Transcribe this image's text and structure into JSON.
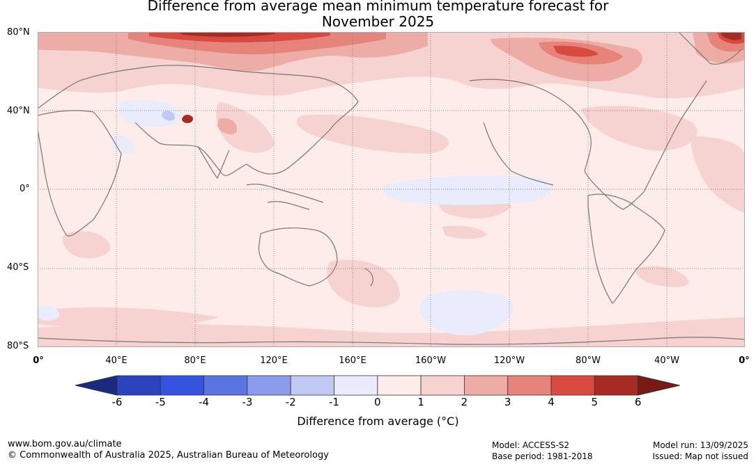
{
  "title_line1": "Difference from average mean minimum temperature forecast for",
  "title_line2": "November 2025",
  "lat_labels": [
    "80°N",
    "40°N",
    "0°",
    "40°S",
    "80°S"
  ],
  "lon_labels": [
    "0°",
    "40°E",
    "80°E",
    "120°E",
    "160°E",
    "160°W",
    "120°W",
    "80°W",
    "40°W",
    "0°"
  ],
  "colorbar": {
    "ticks": [
      "-6",
      "-5",
      "-4",
      "-3",
      "-2",
      "-1",
      "0",
      "1",
      "2",
      "3",
      "4",
      "5",
      "6"
    ],
    "colors": [
      "#1a2a80",
      "#2a44c0",
      "#3454e0",
      "#5a74e4",
      "#8c9cec",
      "#c0c8f4",
      "#e8ecfc",
      "#fdecea",
      "#f6d3d0",
      "#eeaca6",
      "#e6847c",
      "#d84a40",
      "#a82a24",
      "#7a1a14"
    ],
    "label": "Difference from average (°C)"
  },
  "footer": {
    "website": "www.bom.gov.au/climate",
    "copyright": "© Commonwealth of Australia 2025, Australian Bureau of Meteorology",
    "model": "Model: ACCESS-S2",
    "base_period": "Base period: 1981-2018",
    "model_run": "Model run: 13/09/2025",
    "issued": "Issued: Map not issued"
  }
}
